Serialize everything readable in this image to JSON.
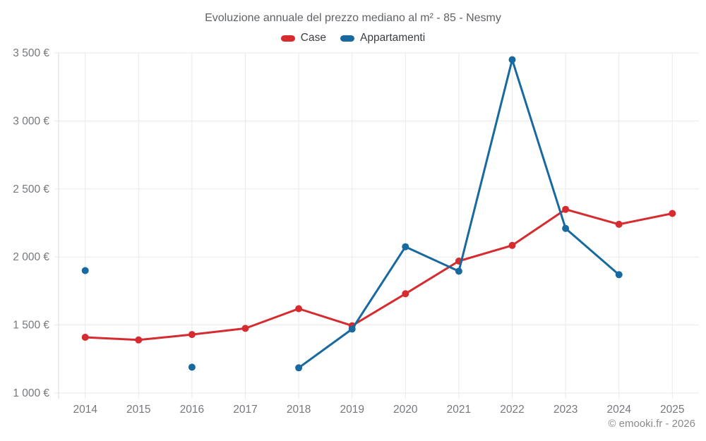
{
  "chart_data": {
    "type": "line",
    "title": "Evoluzione annuale del prezzo mediano al m² - 85 - Nesmy",
    "attribution": "© emooki.fr - 2026",
    "x_categories": [
      "2014",
      "2015",
      "2016",
      "2017",
      "2018",
      "2019",
      "2020",
      "2021",
      "2022",
      "2023",
      "2024",
      "2025"
    ],
    "series": [
      {
        "name": "Case",
        "color": "#d62b2f",
        "values": [
          1410,
          1390,
          1430,
          1475,
          1620,
          1495,
          1730,
          1970,
          2085,
          2350,
          2240,
          2320
        ]
      },
      {
        "name": "Appartamenti",
        "color": "#17699f",
        "values": [
          1900,
          null,
          1190,
          null,
          1185,
          1470,
          2075,
          1895,
          3450,
          2210,
          1870,
          null
        ]
      }
    ],
    "ylim": [
      1000,
      3500
    ],
    "yticks": [
      {
        "value": 1000,
        "label": "1 000 €"
      },
      {
        "value": 1500,
        "label": "1 500 €"
      },
      {
        "value": 2000,
        "label": "2 000 €"
      },
      {
        "value": 2500,
        "label": "2 500 €"
      },
      {
        "value": 3000,
        "label": "3 000 €"
      },
      {
        "value": 3500,
        "label": "3 500 €"
      }
    ],
    "grid": true,
    "legend_position": "top",
    "colors": {
      "grid": "#eaeaea",
      "axis": "#d9d9d9",
      "tick_text": "#75787c",
      "title_text": "#5f6266",
      "legend_text": "#3b3e42",
      "attribution_text": "#8b8b8b"
    }
  }
}
